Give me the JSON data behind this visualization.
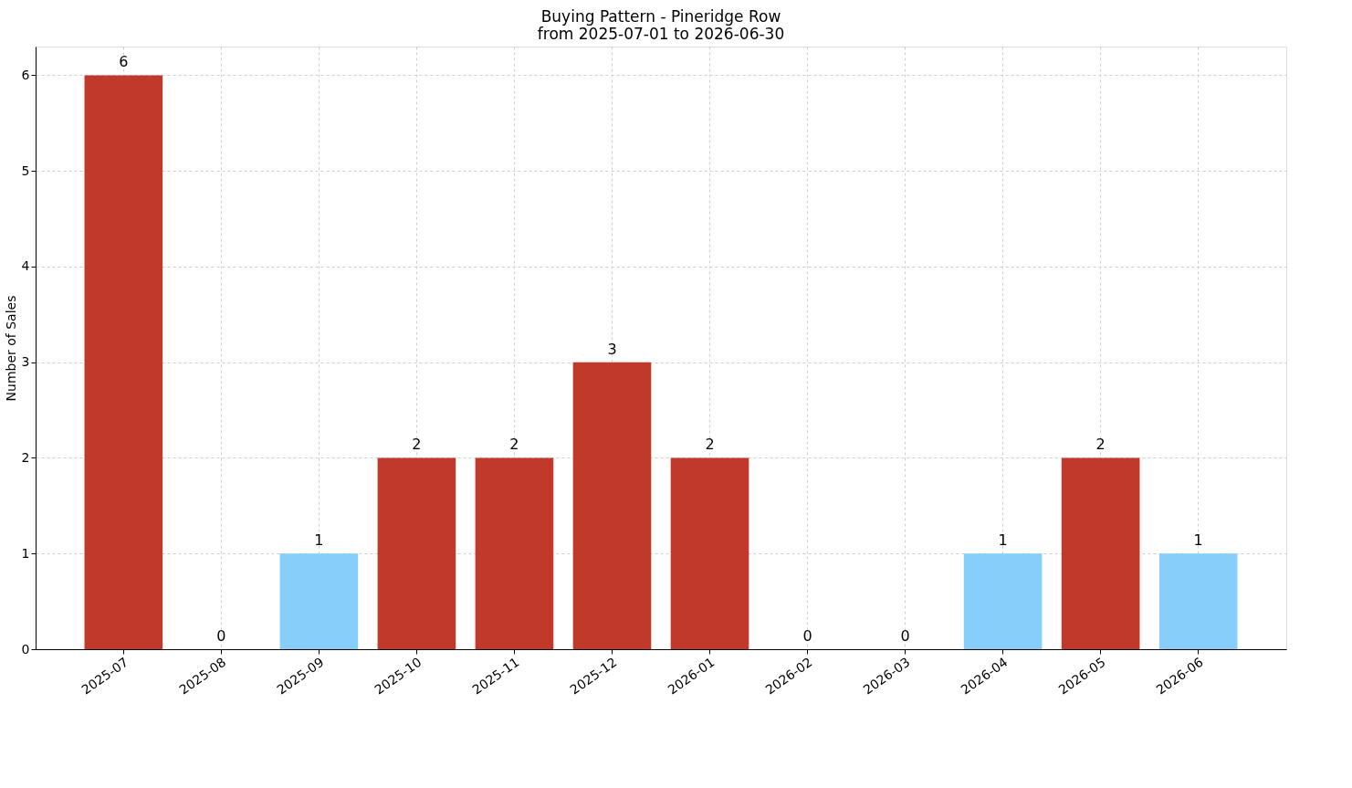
{
  "chart_data": {
    "type": "bar",
    "title": "Buying Pattern - Pineridge Row\nfrom 2025-07-01 to 2026-06-30",
    "ylabel": "Number of Sales",
    "categories": [
      "2025-07",
      "2025-08",
      "2025-09",
      "2025-10",
      "2025-11",
      "2025-12",
      "2026-01",
      "2026-02",
      "2026-03",
      "2026-04",
      "2026-05",
      "2026-06"
    ],
    "values": [
      6,
      0,
      1,
      2,
      2,
      3,
      2,
      0,
      0,
      1,
      2,
      1
    ],
    "colors": [
      "#c0392b",
      "#c0392b",
      "#87cefa",
      "#c0392b",
      "#c0392b",
      "#c0392b",
      "#c0392b",
      "#c0392b",
      "#c0392b",
      "#87cefa",
      "#c0392b",
      "#87cefa"
    ],
    "ylim": [
      0,
      6.3
    ],
    "yticks": [
      0,
      1,
      2,
      3,
      4,
      5,
      6
    ],
    "grid": true,
    "data_labels": true
  }
}
